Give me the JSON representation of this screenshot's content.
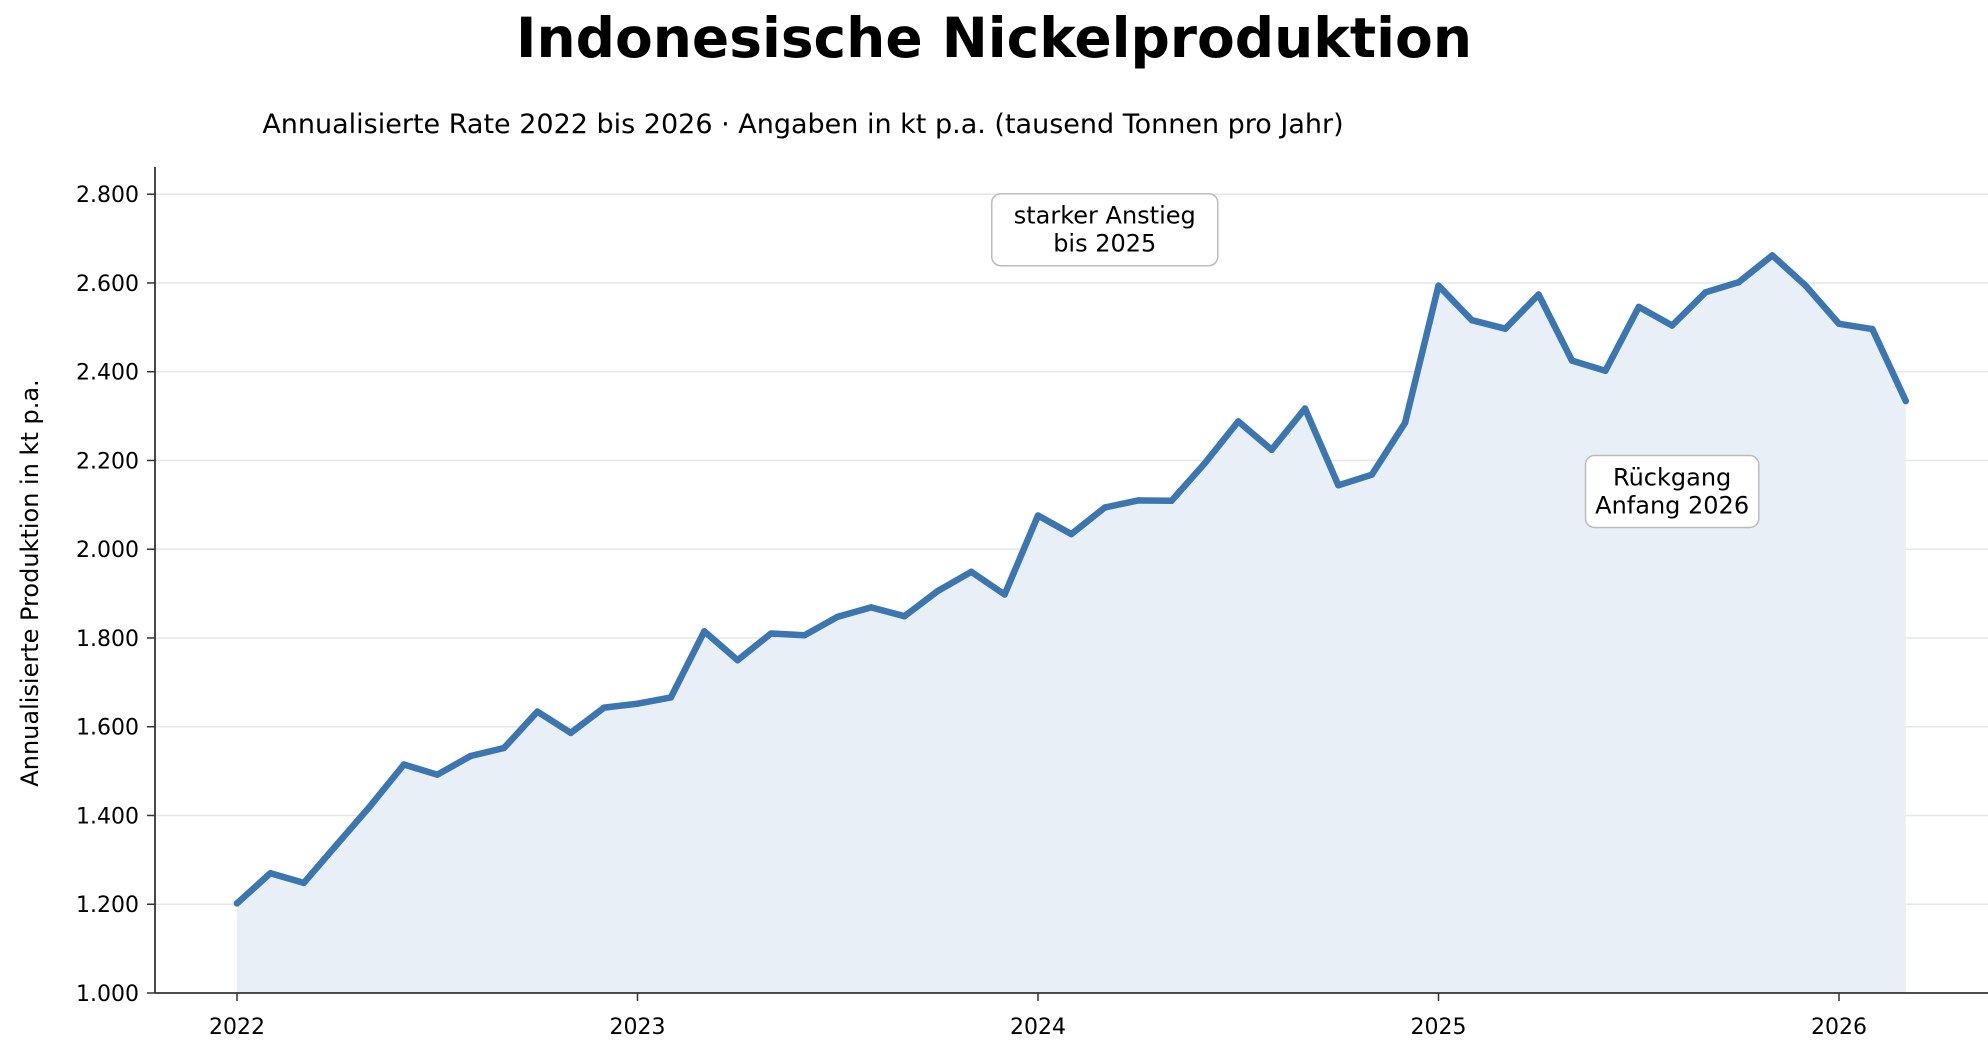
{
  "chart_data": {
    "type": "area",
    "title": "Indonesische Nickelproduktion",
    "subtitle": "Annualisierte Rate 2022 bis 2026 · Angaben in kt p.a. (tausend Tonnen pro Jahr)",
    "ylabel": "Annualisierte Produktion in kt p.a.",
    "xlabel": "",
    "xlim": [
      "2021-10",
      "2026-12"
    ],
    "ylim": [
      1000,
      2850
    ],
    "x_ticks": [
      "2022",
      "2023",
      "2024",
      "2025",
      "2026"
    ],
    "y_ticks": [
      1000,
      1200,
      1400,
      1600,
      1800,
      2000,
      2200,
      2400,
      2600,
      2800
    ],
    "y_tick_labels": [
      "1.000",
      "1.200",
      "1.400",
      "1.600",
      "1.800",
      "2.000",
      "2.200",
      "2.400",
      "2.600",
      "2.800"
    ],
    "grid": "horizontal",
    "line_color": "#3b76b0",
    "fill_color": "#e8eff7",
    "x": [
      "2022-01",
      "2022-02",
      "2022-03",
      "2022-04",
      "2022-05",
      "2022-06",
      "2022-07",
      "2022-08",
      "2022-09",
      "2022-10",
      "2022-11",
      "2022-12",
      "2023-01",
      "2023-02",
      "2023-03",
      "2023-04",
      "2023-05",
      "2023-06",
      "2023-07",
      "2023-08",
      "2023-09",
      "2023-10",
      "2023-11",
      "2023-12",
      "2024-01",
      "2024-02",
      "2024-03",
      "2024-04",
      "2024-05",
      "2024-06",
      "2024-07",
      "2024-08",
      "2024-09",
      "2024-10",
      "2024-11",
      "2024-12",
      "2025-01",
      "2025-02",
      "2025-03",
      "2025-04",
      "2025-05",
      "2025-06",
      "2025-07",
      "2025-08",
      "2025-09",
      "2025-10",
      "2025-11",
      "2025-12",
      "2026-01",
      "2026-02",
      "2026-03"
    ],
    "values": [
      1202,
      1270,
      1248,
      1335,
      1422,
      1515,
      1492,
      1534,
      1552,
      1634,
      1586,
      1643,
      1652,
      1666,
      1815,
      1750,
      1810,
      1806,
      1848,
      1869,
      1849,
      1906,
      1949,
      1898,
      2076,
      2034,
      2094,
      2110,
      2109,
      2194,
      2288,
      2224,
      2317,
      2144,
      2168,
      2285,
      2594,
      2516,
      2497,
      2574,
      2425,
      2402,
      2546,
      2504,
      2579,
      2602,
      2662,
      2594,
      2508,
      2496,
      2334
    ],
    "annotations": [
      {
        "text_lines": [
          "starker Anstieg",
          "bis 2025"
        ],
        "x": "2024-03",
        "y": 2720
      },
      {
        "text_lines": [
          "Rückgang",
          "Anfang 2026"
        ],
        "x": "2025-08",
        "y": 2130
      }
    ]
  }
}
